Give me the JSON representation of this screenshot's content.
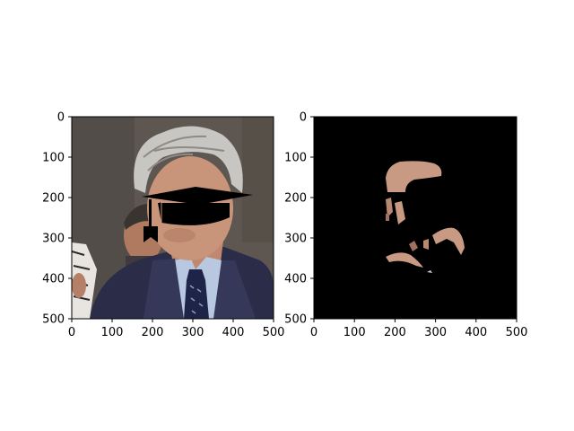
{
  "figure": {
    "panels": [
      {
        "id": "left",
        "description_role": "photo-with-overlay",
        "x_ticks": [
          "0",
          "100",
          "200",
          "300",
          "400",
          "500"
        ],
        "y_ticks": [
          "0",
          "100",
          "200",
          "300",
          "400",
          "500"
        ],
        "x_range": [
          0,
          500
        ],
        "y_range": [
          0,
          500
        ]
      },
      {
        "id": "right",
        "description_role": "skin-mask",
        "x_ticks": [
          "0",
          "100",
          "200",
          "300",
          "400",
          "500"
        ],
        "y_ticks": [
          "0",
          "100",
          "200",
          "300",
          "400",
          "500"
        ],
        "x_range": [
          0,
          500
        ],
        "y_range": [
          0,
          500
        ]
      }
    ]
  },
  "colors": {
    "photo_background": "#5e5650",
    "suit": "#2a2c48",
    "shirt": "#b8c8e0",
    "tie": "#1e2448",
    "hair": "#c8c6c2",
    "skin": "#c8957a",
    "hat": "#000000",
    "mask_background": "#000000",
    "mask_skin": "#c89a84"
  }
}
